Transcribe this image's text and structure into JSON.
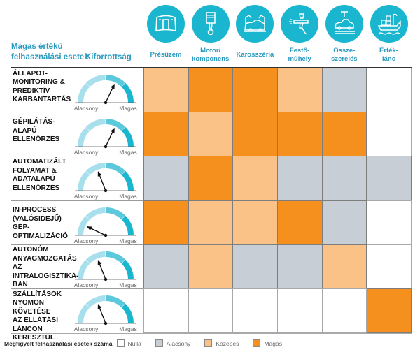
{
  "header": {
    "use_cases_title": "Magas értékű felhasználási esetek",
    "maturity_title": "Kiforrottság"
  },
  "colors": {
    "accent": "#2a9ac0",
    "icon_bg": "#1ab6cf",
    "gauge_light": "#a8dfec",
    "gauge_mid": "#5cc8dc",
    "gauge_dark": "#1ab6cf",
    "Nulla": "#ffffff",
    "Alacsony": "#c8ced5",
    "Közepes": "#fbc288",
    "Magas": "#f5901e"
  },
  "gauge_labels": {
    "low": "Alacsony",
    "high": "Magas"
  },
  "chart_data": {
    "type": "heatmap",
    "title": "",
    "columns": [
      {
        "label": "Présüzem",
        "icon": "car-hood-icon"
      },
      {
        "label": "Motor/ komponens",
        "icon": "piston-icon"
      },
      {
        "label": "Karosszéria",
        "icon": "robot-arm-car-body-icon"
      },
      {
        "label": "Festő- műhely",
        "icon": "spray-gun-icon"
      },
      {
        "label": "Össze- szerelés",
        "icon": "car-assembly-line-icon"
      },
      {
        "label": "Érték- lánc",
        "icon": "cargo-ship-icon"
      }
    ],
    "rows": [
      {
        "label": "ÁLLAPOT-MONITORING & PREDIKTÍV KARBANTARTÁS",
        "label_lines": [
          "ÁLLAPOT-",
          "MONITORING &",
          "PREDIKTÍV",
          "KARBANTARTÁS"
        ],
        "maturity": 0.64,
        "values": [
          "Közepes",
          "Magas",
          "Magas",
          "Közepes",
          "Alacsony",
          "Nulla"
        ]
      },
      {
        "label": "GÉPILÁTÁS-ALAPÚ ELLENŐRZÉS",
        "label_lines": [
          "GÉPILÁTÁS-",
          "ALAPÚ",
          "ELLENŐRZÉS"
        ],
        "maturity": 0.64,
        "values": [
          "Magas",
          "Közepes",
          "Magas",
          "Magas",
          "Magas",
          "Nulla"
        ]
      },
      {
        "label": "AUTOMATIZÁLT FOLYAMAT & ADATALAPÚ ELLENŐRZÉS",
        "label_lines": [
          "AUTOMATIZÁLT",
          "FOLYAMAT &",
          "ADATALAPÚ",
          "ELLENŐRZÉS"
        ],
        "maturity": 0.38,
        "values": [
          "Alacsony",
          "Magas",
          "Közepes",
          "Alacsony",
          "Alacsony",
          "Alacsony"
        ]
      },
      {
        "label": "IN-PROCESS (VALÓSIDEJŰ) GÉP-OPTIMALIZÁCIÓ",
        "label_lines": [
          "IN-PROCESS",
          "(VALÓSIDEJŰ)",
          "GÉP-OPTIMALIZÁCIÓ"
        ],
        "maturity": 0.14,
        "values": [
          "Magas",
          "Közepes",
          "Közepes",
          "Magas",
          "Alacsony",
          "Nulla"
        ]
      },
      {
        "label": "AUTONÓM ANYAGMOZGATÁS AZ INTRALOGISZTIKÁBAN",
        "label_lines": [
          "AUTONÓM",
          "ANYAGMOZGATÁS AZ",
          "INTRALOGISZTIKÁ-",
          "BAN"
        ],
        "maturity": 0.38,
        "values": [
          "Alacsony",
          "Közepes",
          "Alacsony",
          "Alacsony",
          "Közepes",
          "Nulla"
        ]
      },
      {
        "label": "SZÁLLÍTÁSOK NYOMON KÖVETÉSE AZ ELLÁTÁSI LÁNCON KERESZTÜL",
        "label_lines": [
          "SZÁLLÍTÁSOK",
          "NYOMON KÖVETÉSE",
          "AZ ELLÁTÁSI LÁNCON",
          "KERESZTÜL"
        ],
        "maturity": 0.38,
        "values": [
          "Nulla",
          "Nulla",
          "Nulla",
          "Nulla",
          "Nulla",
          "Magas"
        ]
      }
    ],
    "legend": {
      "title": "Megfigyelt felhasználási esetek száma",
      "items": [
        "Nulla",
        "Alacsony",
        "Közepes",
        "Magas"
      ],
      "placement": "bottom"
    }
  }
}
